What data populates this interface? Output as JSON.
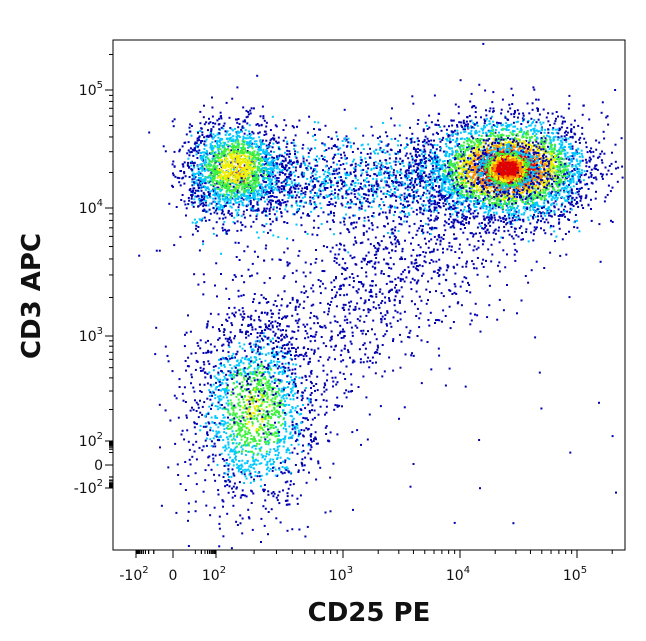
{
  "chart_data": {
    "type": "scatter",
    "style": "flow-cytometry density dot plot (pseudocolor)",
    "xlabel": "CD25 PE",
    "ylabel": "CD3 APC",
    "x_scale": "biexponential",
    "y_scale": "biexponential",
    "x_ticks": [
      {
        "value": -100,
        "base": "-10",
        "exp": "2"
      },
      {
        "value": 0,
        "base": "0",
        "exp": ""
      },
      {
        "value": 100,
        "base": "10",
        "exp": "2"
      },
      {
        "value": 1000,
        "base": "10",
        "exp": "3"
      },
      {
        "value": 10000,
        "base": "10",
        "exp": "4"
      },
      {
        "value": 100000,
        "base": "10",
        "exp": "5"
      }
    ],
    "y_ticks": [
      {
        "value": -100,
        "base": "-10",
        "exp": "2"
      },
      {
        "value": 0,
        "base": "0",
        "exp": ""
      },
      {
        "value": 100,
        "base": "10",
        "exp": "2"
      },
      {
        "value": 1000,
        "base": "10",
        "exp": "3"
      },
      {
        "value": 10000,
        "base": "10",
        "exp": "4"
      },
      {
        "value": 100000,
        "base": "10",
        "exp": "5"
      }
    ],
    "grid": false,
    "legend": "none",
    "colormap": [
      "#0000b0",
      "#00c8ff",
      "#3cf03c",
      "#f0f000",
      "#ff8c00",
      "#e00000"
    ],
    "populations": [
      {
        "label": "CD3+ CD25- cluster",
        "x_center": 140,
        "y_center": 22000,
        "relative_density": 0.45
      },
      {
        "label": "CD3+ CD25+ cluster",
        "x_center": 25000,
        "y_center": 22000,
        "relative_density": 1.0
      },
      {
        "label": "CD3+ band",
        "x_range": [
          150,
          60000
        ],
        "y_center": 18000,
        "relative_density": 0.3
      },
      {
        "label": "CD3- CD25- cluster",
        "x_center": 200,
        "y_center": 200,
        "relative_density": 0.4
      },
      {
        "label": "diagonal scatter",
        "x_range": [
          200,
          30000
        ],
        "y_range": [
          150,
          12000
        ],
        "relative_density": 0.12
      }
    ]
  }
}
